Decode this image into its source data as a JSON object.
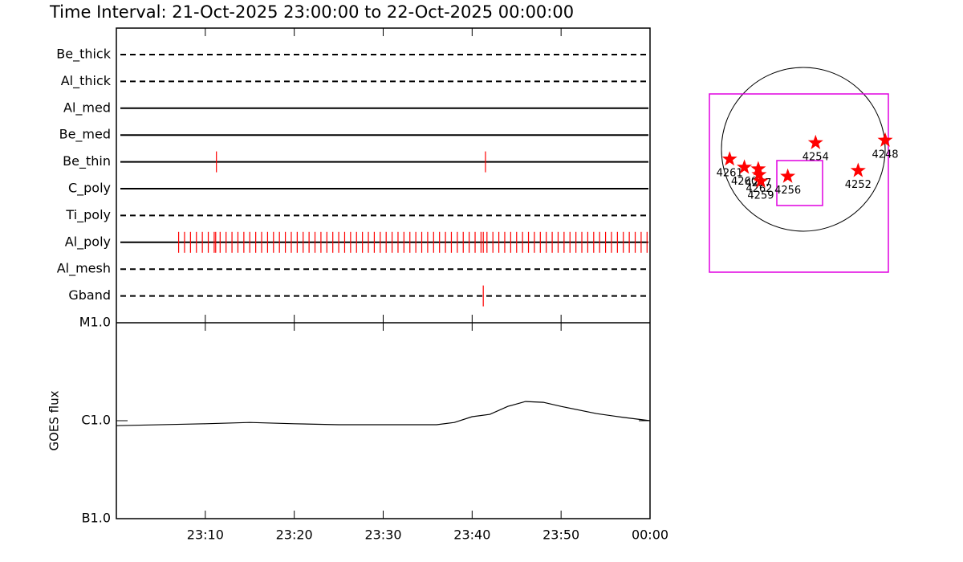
{
  "chart_data": [
    {
      "type": "timeline",
      "title": "Time Interval: 21-Oct-2025 23:00:00 to 22-Oct-2025 00:00:00",
      "categories": [
        "Be_thick",
        "Al_thick",
        "Al_med",
        "Be_med",
        "Be_thin",
        "C_poly",
        "Ti_poly",
        "Al_poly",
        "Al_mesh",
        "Gband"
      ],
      "line_styles": [
        "dashed",
        "dashed",
        "solid",
        "solid",
        "solid",
        "solid",
        "dashed",
        "solid",
        "dashed",
        "dashed"
      ],
      "color": "#ff0000",
      "xlim": [
        "23:00:00",
        "00:00:00"
      ],
      "events": [
        [],
        [],
        [],
        [],
        [
          "23:11:15",
          "23:41:30"
        ],
        [],
        [],
        [
          "23:07:00",
          "23:07:40",
          "23:08:20",
          "23:09:00",
          "23:09:40",
          "23:10:20",
          "23:11:00",
          "23:11:10",
          "23:11:40",
          "23:12:20",
          "23:13:00",
          "23:13:40",
          "23:14:20",
          "23:15:00",
          "23:15:40",
          "23:16:20",
          "23:17:00",
          "23:17:40",
          "23:18:20",
          "23:19:00",
          "23:19:40",
          "23:20:20",
          "23:21:00",
          "23:21:40",
          "23:22:20",
          "23:23:00",
          "23:23:40",
          "23:24:20",
          "23:25:00",
          "23:25:40",
          "23:26:20",
          "23:27:00",
          "23:27:40",
          "23:28:20",
          "23:29:00",
          "23:29:40",
          "23:30:20",
          "23:31:00",
          "23:31:40",
          "23:32:20",
          "23:33:00",
          "23:33:40",
          "23:34:20",
          "23:35:00",
          "23:35:40",
          "23:36:20",
          "23:37:00",
          "23:37:40",
          "23:38:20",
          "23:39:00",
          "23:39:40",
          "23:40:20",
          "23:41:00",
          "23:41:15",
          "23:41:40",
          "23:42:20",
          "23:43:00",
          "23:43:40",
          "23:44:20",
          "23:45:00",
          "23:45:40",
          "23:46:20",
          "23:47:00",
          "23:47:40",
          "23:48:20",
          "23:49:00",
          "23:49:40",
          "23:50:20",
          "23:51:00",
          "23:51:40",
          "23:52:20",
          "23:53:00",
          "23:53:40",
          "23:54:20",
          "23:55:00",
          "23:55:40",
          "23:56:20",
          "23:57:00",
          "23:57:40",
          "23:58:20",
          "23:59:00",
          "23:59:40"
        ],
        [],
        [
          "23:41:15"
        ]
      ]
    },
    {
      "type": "line",
      "ylabel": "GOES flux",
      "log": true,
      "color": "#000000",
      "x": [
        "23:00",
        "23:10",
        "23:15",
        "23:20",
        "23:25",
        "23:30",
        "23:36",
        "23:38",
        "23:40",
        "23:42",
        "23:44",
        "23:46",
        "23:48",
        "23:50",
        "23:54",
        "23:57",
        "00:00"
      ],
      "values": [
        8.9e-07,
        9.3e-07,
        9.6e-07,
        9.3e-07,
        9.1e-07,
        9.1e-07,
        9.1e-07,
        9.6e-07,
        1.1e-06,
        1.16e-06,
        1.4e-06,
        1.57e-06,
        1.54e-06,
        1.4e-06,
        1.18e-06,
        1.08e-06,
        1e-06
      ],
      "xlim": [
        "23:00",
        "00:00"
      ],
      "xticks": [
        "23:10",
        "23:20",
        "23:30",
        "23:40",
        "23:50",
        "00:00"
      ],
      "ylim": [
        1e-07,
        1e-05
      ],
      "yticks": [
        {
          "value": 1e-07,
          "label": "B1.0"
        },
        {
          "value": 1e-06,
          "label": "C1.0"
        },
        {
          "value": 1e-05,
          "label": "M1.0"
        }
      ]
    },
    {
      "type": "map",
      "color": "#ff0000",
      "regions": [
        {
          "label": "4261",
          "x": -0.9,
          "y": -0.12
        },
        {
          "label": "4260",
          "x": -0.72,
          "y": -0.22
        },
        {
          "label": "4257",
          "x": -0.55,
          "y": -0.24
        },
        {
          "label": "4262",
          "x": -0.54,
          "y": -0.31
        },
        {
          "label": "4259",
          "x": -0.52,
          "y": -0.39
        },
        {
          "label": "4256",
          "x": -0.19,
          "y": -0.33
        },
        {
          "label": "4254",
          "x": 0.15,
          "y": 0.08
        },
        {
          "label": "4252",
          "x": 0.67,
          "y": -0.26
        },
        {
          "label": "4248",
          "x": 1.0,
          "y": 0.11
        }
      ]
    }
  ]
}
